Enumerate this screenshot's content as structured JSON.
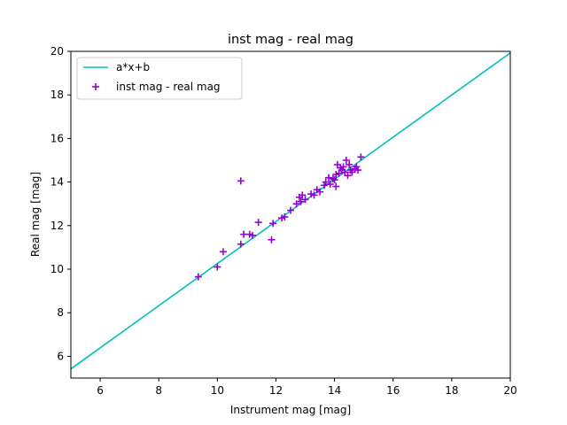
{
  "chart_data": {
    "type": "scatter",
    "title": "inst mag - real mag",
    "xlabel": "Instrument mag [mag]",
    "ylabel": "Real mag [mag]",
    "xlim": [
      5,
      20
    ],
    "ylim": [
      5,
      20
    ],
    "xticks": [
      "6",
      "8",
      "10",
      "12",
      "14",
      "16",
      "18",
      "20"
    ],
    "yticks": [
      "6",
      "8",
      "10",
      "12",
      "14",
      "16",
      "18",
      "20"
    ],
    "grid": false,
    "legend_position": "top-left",
    "series": [
      {
        "name": "a*x+b",
        "kind": "line",
        "color": "#00bfbf",
        "x": [
          5,
          20
        ],
        "y": [
          5.42,
          19.93
        ]
      },
      {
        "name": "inst mag - real mag",
        "kind": "scatter",
        "marker": "plus",
        "color": "#9400d3",
        "x": [
          9.35,
          10.0,
          10.2,
          10.8,
          10.8,
          10.9,
          11.1,
          11.2,
          11.4,
          11.85,
          11.9,
          12.2,
          12.3,
          12.5,
          12.7,
          12.8,
          12.85,
          12.9,
          13.0,
          13.2,
          13.3,
          13.4,
          13.5,
          13.65,
          13.7,
          13.8,
          13.85,
          13.95,
          14.0,
          14.05,
          14.05,
          14.1,
          14.15,
          14.2,
          14.25,
          14.3,
          14.35,
          14.4,
          14.45,
          14.5,
          14.55,
          14.6,
          14.7,
          14.75,
          14.8,
          14.9
        ],
        "y": [
          9.65,
          10.1,
          10.8,
          14.05,
          11.15,
          11.6,
          11.6,
          11.55,
          12.15,
          11.35,
          12.1,
          12.35,
          12.4,
          12.7,
          13.0,
          13.3,
          13.1,
          13.4,
          13.2,
          13.45,
          13.4,
          13.65,
          13.55,
          13.85,
          14.0,
          14.2,
          13.9,
          14.15,
          14.1,
          13.8,
          14.35,
          14.8,
          14.4,
          14.65,
          14.55,
          14.7,
          14.45,
          15.0,
          14.3,
          14.8,
          14.55,
          14.45,
          14.6,
          14.7,
          14.55,
          15.15
        ]
      }
    ]
  }
}
